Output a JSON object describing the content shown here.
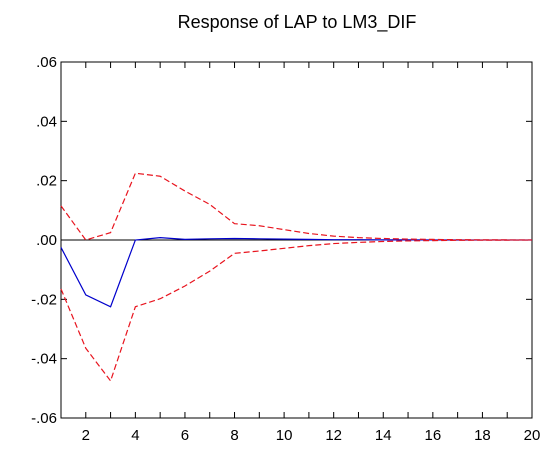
{
  "chart_data": {
    "type": "line",
    "title": "Response of LAP to LM3_DIF",
    "xlabel": "",
    "ylabel": "",
    "xlim": [
      1,
      20
    ],
    "ylim": [
      -0.06,
      0.06
    ],
    "x_ticks": [
      2,
      4,
      6,
      8,
      10,
      12,
      14,
      16,
      18,
      20
    ],
    "x_tick_labels": [
      "2",
      "4",
      "6",
      "8",
      "10",
      "12",
      "14",
      "16",
      "18",
      "20"
    ],
    "y_ticks": [
      0.06,
      0.04,
      0.02,
      0.0,
      -0.02,
      -0.04,
      -0.06
    ],
    "y_tick_labels": [
      ".06",
      ".04",
      ".02",
      ".00",
      "-.02",
      "-.04",
      "-.06"
    ],
    "zero_line": true,
    "grid": false,
    "x": [
      1,
      2,
      3,
      4,
      5,
      6,
      7,
      8,
      9,
      10,
      11,
      12,
      13,
      14,
      15,
      16,
      17,
      18,
      19,
      20
    ],
    "series": [
      {
        "color": "#0000cc",
        "dash": "solid",
        "values": [
          -0.0025,
          -0.0185,
          -0.0225,
          0.0,
          0.0008,
          0.0002,
          0.0004,
          0.0005,
          0.0004,
          0.0003,
          0.0002,
          0.0001,
          0.0001,
          5e-05,
          3e-05,
          2e-05,
          1e-05,
          0.0,
          0.0,
          0.0
        ]
      },
      {
        "color": "#e8141e",
        "dash": "dashed",
        "values": [
          0.0115,
          0.0,
          0.0025,
          0.0225,
          0.0215,
          0.0165,
          0.012,
          0.0055,
          0.0048,
          0.0035,
          0.0022,
          0.0013,
          0.0008,
          0.0005,
          0.0003,
          0.0002,
          0.0001,
          5e-05,
          3e-05,
          2e-05
        ]
      },
      {
        "color": "#e8141e",
        "dash": "dashed",
        "values": [
          -0.0165,
          -0.0365,
          -0.0475,
          -0.0225,
          -0.0198,
          -0.0155,
          -0.0105,
          -0.0045,
          -0.0037,
          -0.0028,
          -0.0019,
          -0.0012,
          -0.0008,
          -0.0005,
          -0.0003,
          -0.0002,
          -0.0001,
          -5e-05,
          -3e-05,
          -2e-05
        ]
      }
    ]
  }
}
